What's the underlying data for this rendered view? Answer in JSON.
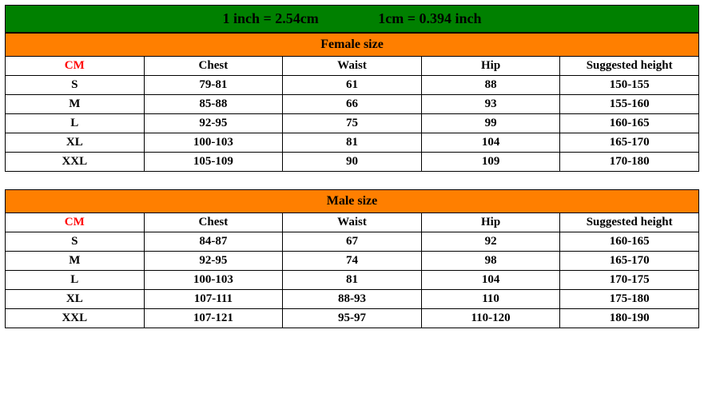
{
  "conversion": {
    "left": "1 inch = 2.54cm",
    "right": "1cm = 0.394 inch",
    "bg_color": "#008000",
    "text_color": "#000000"
  },
  "colors": {
    "title_bg": "#ff7f00",
    "cm_text": "#ff0000",
    "border": "#000000",
    "cell_bg": "#ffffff"
  },
  "headers": {
    "cm": "CM",
    "chest": "Chest",
    "waist": "Waist",
    "hip": "Hip",
    "suggested_height": "Suggested height"
  },
  "female": {
    "title": "Female size",
    "rows": [
      {
        "size": "S",
        "chest": "79-81",
        "waist": "61",
        "hip": "88",
        "height": "150-155"
      },
      {
        "size": "M",
        "chest": "85-88",
        "waist": "66",
        "hip": "93",
        "height": "155-160"
      },
      {
        "size": "L",
        "chest": "92-95",
        "waist": "75",
        "hip": "99",
        "height": "160-165"
      },
      {
        "size": "XL",
        "chest": "100-103",
        "waist": "81",
        "hip": "104",
        "height": "165-170"
      },
      {
        "size": "XXL",
        "chest": "105-109",
        "waist": "90",
        "hip": "109",
        "height": "170-180"
      }
    ]
  },
  "male": {
    "title": "Male size",
    "rows": [
      {
        "size": "S",
        "chest": "84-87",
        "waist": "67",
        "hip": "92",
        "height": "160-165"
      },
      {
        "size": "M",
        "chest": "92-95",
        "waist": "74",
        "hip": "98",
        "height": "165-170"
      },
      {
        "size": "L",
        "chest": "100-103",
        "waist": "81",
        "hip": "104",
        "height": "170-175"
      },
      {
        "size": "XL",
        "chest": "107-111",
        "waist": "88-93",
        "hip": "110",
        "height": "175-180"
      },
      {
        "size": "XXL",
        "chest": "107-121",
        "waist": "95-97",
        "hip": "110-120",
        "height": "180-190"
      }
    ]
  }
}
